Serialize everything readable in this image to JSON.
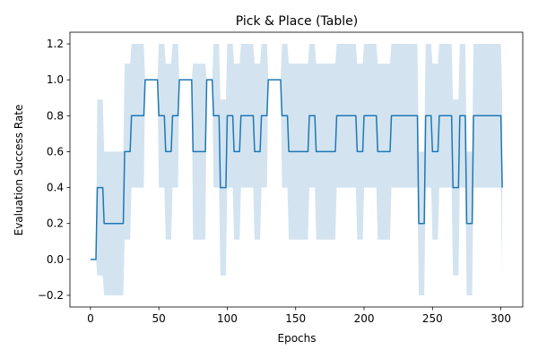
{
  "chart_data": {
    "type": "line",
    "title": "Pick & Place (Table)",
    "xlabel": "Epochs",
    "ylabel": "Evaluation Success Rate",
    "xlim": [
      -15,
      316
    ],
    "ylim": [
      -0.265,
      1.265
    ],
    "xticks": [
      0,
      50,
      100,
      150,
      200,
      250,
      300
    ],
    "yticks": [
      -0.2,
      0.0,
      0.2,
      0.4,
      0.6,
      0.8,
      1.0,
      1.2
    ],
    "xtick_labels": [
      "0",
      "50",
      "100",
      "150",
      "200",
      "250",
      "300"
    ],
    "ytick_labels": [
      "−0.2",
      "0.0",
      "0.2",
      "0.4",
      "0.6",
      "0.8",
      "1.0",
      "1.2"
    ],
    "grid": false,
    "legend": "none",
    "line_color": "#1f77b4",
    "band_color": "#aecde4",
    "series": [
      {
        "x": [
          0,
          4,
          5,
          9,
          10,
          14,
          15,
          19,
          20,
          24,
          25,
          29,
          30,
          34,
          35,
          39,
          40,
          44,
          45,
          49,
          50,
          54,
          55,
          59,
          60,
          64,
          65,
          69,
          70,
          74,
          75,
          79,
          80,
          84,
          85,
          89,
          90,
          94,
          95,
          99,
          100,
          104,
          105,
          109,
          110,
          114,
          115,
          119,
          120,
          124,
          125,
          129,
          130,
          134,
          135,
          139,
          140,
          144,
          145,
          149,
          150,
          154,
          155,
          159,
          160,
          164,
          165,
          169,
          170,
          174,
          175,
          179,
          180,
          184,
          185,
          189,
          190,
          194,
          195,
          199,
          200,
          204,
          205,
          209,
          210,
          214,
          215,
          219,
          220,
          224,
          225,
          229,
          230,
          234,
          235,
          239,
          240,
          244,
          245,
          249,
          250,
          254,
          255,
          259,
          260,
          264,
          265,
          269,
          270,
          274,
          275,
          279,
          280,
          284,
          285,
          289,
          290,
          294,
          295,
          299,
          300,
          301
        ],
        "y": [
          0.0,
          0.0,
          0.4,
          0.4,
          0.2,
          0.2,
          0.2,
          0.2,
          0.2,
          0.2,
          0.6,
          0.6,
          0.8,
          0.8,
          0.8,
          0.8,
          1.0,
          1.0,
          1.0,
          1.0,
          0.8,
          0.8,
          0.6,
          0.6,
          0.8,
          0.8,
          1.0,
          1.0,
          1.0,
          1.0,
          0.6,
          0.6,
          0.6,
          0.6,
          1.0,
          1.0,
          0.8,
          0.8,
          0.4,
          0.4,
          0.8,
          0.8,
          0.6,
          0.6,
          0.8,
          0.8,
          0.8,
          0.8,
          0.6,
          0.6,
          0.8,
          0.8,
          1.0,
          1.0,
          1.0,
          1.0,
          0.8,
          0.8,
          0.6,
          0.6,
          0.6,
          0.6,
          0.6,
          0.6,
          0.8,
          0.8,
          0.6,
          0.6,
          0.6,
          0.6,
          0.6,
          0.6,
          0.8,
          0.8,
          0.8,
          0.8,
          0.8,
          0.8,
          0.6,
          0.6,
          0.8,
          0.8,
          0.8,
          0.8,
          0.6,
          0.6,
          0.6,
          0.6,
          0.8,
          0.8,
          0.8,
          0.8,
          0.8,
          0.8,
          0.8,
          0.8,
          0.2,
          0.2,
          0.8,
          0.8,
          0.6,
          0.6,
          0.8,
          0.8,
          0.8,
          0.8,
          0.4,
          0.4,
          0.8,
          0.8,
          0.2,
          0.2,
          0.8,
          0.8,
          0.8,
          0.8,
          0.8,
          0.8,
          0.8,
          0.8,
          0.8,
          0.4
        ],
        "upper": [
          0.0,
          0.0,
          0.89,
          0.89,
          0.6,
          0.6,
          0.6,
          0.6,
          0.6,
          0.6,
          1.09,
          1.09,
          1.2,
          1.2,
          1.2,
          1.2,
          1.0,
          1.0,
          1.0,
          1.0,
          1.2,
          1.2,
          1.09,
          1.09,
          1.2,
          1.2,
          1.0,
          1.0,
          1.0,
          1.0,
          1.09,
          1.09,
          1.09,
          1.09,
          1.0,
          1.0,
          1.2,
          1.2,
          0.89,
          0.89,
          1.2,
          1.2,
          1.09,
          1.09,
          1.2,
          1.2,
          1.2,
          1.2,
          1.09,
          1.09,
          1.2,
          1.2,
          1.0,
          1.0,
          1.0,
          1.0,
          1.2,
          1.2,
          1.09,
          1.09,
          1.09,
          1.09,
          1.09,
          1.09,
          1.2,
          1.2,
          1.09,
          1.09,
          1.09,
          1.09,
          1.09,
          1.09,
          1.2,
          1.2,
          1.2,
          1.2,
          1.2,
          1.2,
          1.09,
          1.09,
          1.2,
          1.2,
          1.2,
          1.2,
          1.09,
          1.09,
          1.09,
          1.09,
          1.2,
          1.2,
          1.2,
          1.2,
          1.2,
          1.2,
          1.2,
          1.2,
          0.6,
          0.6,
          1.2,
          1.2,
          1.09,
          1.09,
          1.2,
          1.2,
          1.2,
          1.2,
          0.89,
          0.89,
          1.2,
          1.2,
          0.6,
          0.6,
          1.2,
          1.2,
          1.2,
          1.2,
          1.2,
          1.2,
          1.2,
          1.2,
          1.2,
          0.89
        ],
        "lower": [
          0.0,
          0.0,
          -0.09,
          -0.09,
          -0.2,
          -0.2,
          -0.2,
          -0.2,
          -0.2,
          -0.2,
          0.11,
          0.11,
          0.4,
          0.4,
          0.4,
          0.4,
          1.0,
          1.0,
          1.0,
          1.0,
          0.4,
          0.4,
          0.11,
          0.11,
          0.4,
          0.4,
          1.0,
          1.0,
          1.0,
          1.0,
          0.11,
          0.11,
          0.11,
          0.11,
          1.0,
          1.0,
          0.4,
          0.4,
          -0.09,
          -0.09,
          0.4,
          0.4,
          0.11,
          0.11,
          0.4,
          0.4,
          0.4,
          0.4,
          0.11,
          0.11,
          0.4,
          0.4,
          1.0,
          1.0,
          1.0,
          1.0,
          0.4,
          0.4,
          0.11,
          0.11,
          0.11,
          0.11,
          0.11,
          0.11,
          0.4,
          0.4,
          0.11,
          0.11,
          0.11,
          0.11,
          0.11,
          0.11,
          0.4,
          0.4,
          0.4,
          0.4,
          0.4,
          0.4,
          0.11,
          0.11,
          0.4,
          0.4,
          0.4,
          0.4,
          0.11,
          0.11,
          0.11,
          0.11,
          0.4,
          0.4,
          0.4,
          0.4,
          0.4,
          0.4,
          0.4,
          0.4,
          -0.2,
          -0.2,
          0.4,
          0.4,
          0.11,
          0.11,
          0.4,
          0.4,
          0.4,
          0.4,
          -0.09,
          -0.09,
          0.4,
          0.4,
          -0.2,
          -0.2,
          0.4,
          0.4,
          0.4,
          0.4,
          0.4,
          0.4,
          0.4,
          0.4,
          0.4,
          -0.09
        ]
      }
    ]
  }
}
